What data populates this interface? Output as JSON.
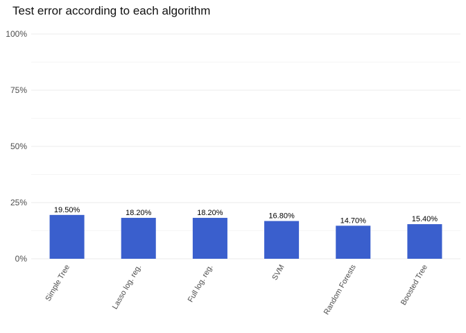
{
  "chart_data": {
    "type": "bar",
    "title": "Test error according to each algorithm",
    "xlabel": "",
    "ylabel": "",
    "categories": [
      "Simple Tree",
      "Lasso log. reg.",
      "Full log. reg.",
      "SVM",
      "Random Forests",
      "Boosted Tree"
    ],
    "values": [
      19.5,
      18.2,
      18.2,
      16.8,
      14.7,
      15.4
    ],
    "data_labels": [
      "19.50%",
      "18.20%",
      "18.20%",
      "16.80%",
      "14.70%",
      "15.40%"
    ],
    "ylim": [
      0,
      100
    ],
    "yticks": [
      0,
      25,
      50,
      75,
      100
    ],
    "ytick_labels": [
      "0%",
      "25%",
      "50%",
      "75%",
      "100%"
    ],
    "grid": true,
    "legend": "none",
    "bar_color": "#3a5fcd",
    "grid_color": "#ebebeb"
  }
}
